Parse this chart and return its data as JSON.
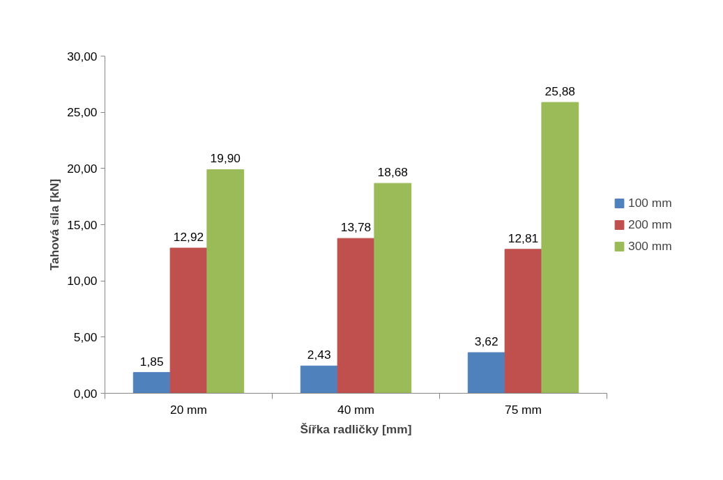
{
  "chart_data": {
    "type": "bar",
    "xlabel": "Šířka radličky [mm]",
    "ylabel": "Tahová síla [kN]",
    "categories": [
      "20 mm",
      "40 mm",
      "75 mm"
    ],
    "series": [
      {
        "name": "100 mm",
        "color": "#4f81bd",
        "values": [
          1.85,
          2.43,
          3.62
        ],
        "value_labels": [
          "1,85",
          "2,43",
          "3,62"
        ]
      },
      {
        "name": "200 mm",
        "color": "#c0504d",
        "values": [
          12.92,
          13.78,
          12.81
        ],
        "value_labels": [
          "12,92",
          "13,78",
          "12,81"
        ]
      },
      {
        "name": "300 mm",
        "color": "#9bbb59",
        "values": [
          19.9,
          18.68,
          25.88
        ],
        "value_labels": [
          "19,90",
          "18,68",
          "25,88"
        ]
      }
    ],
    "ylim": [
      0,
      30
    ],
    "yticks": [
      {
        "value": 0,
        "label": "0,00"
      },
      {
        "value": 5,
        "label": "5,00"
      },
      {
        "value": 10,
        "label": "10,00"
      },
      {
        "value": 15,
        "label": "15,00"
      },
      {
        "value": 20,
        "label": "20,00"
      },
      {
        "value": 25,
        "label": "25,00"
      },
      {
        "value": 30,
        "label": "30,00"
      }
    ],
    "grid": false,
    "legend": "right"
  }
}
